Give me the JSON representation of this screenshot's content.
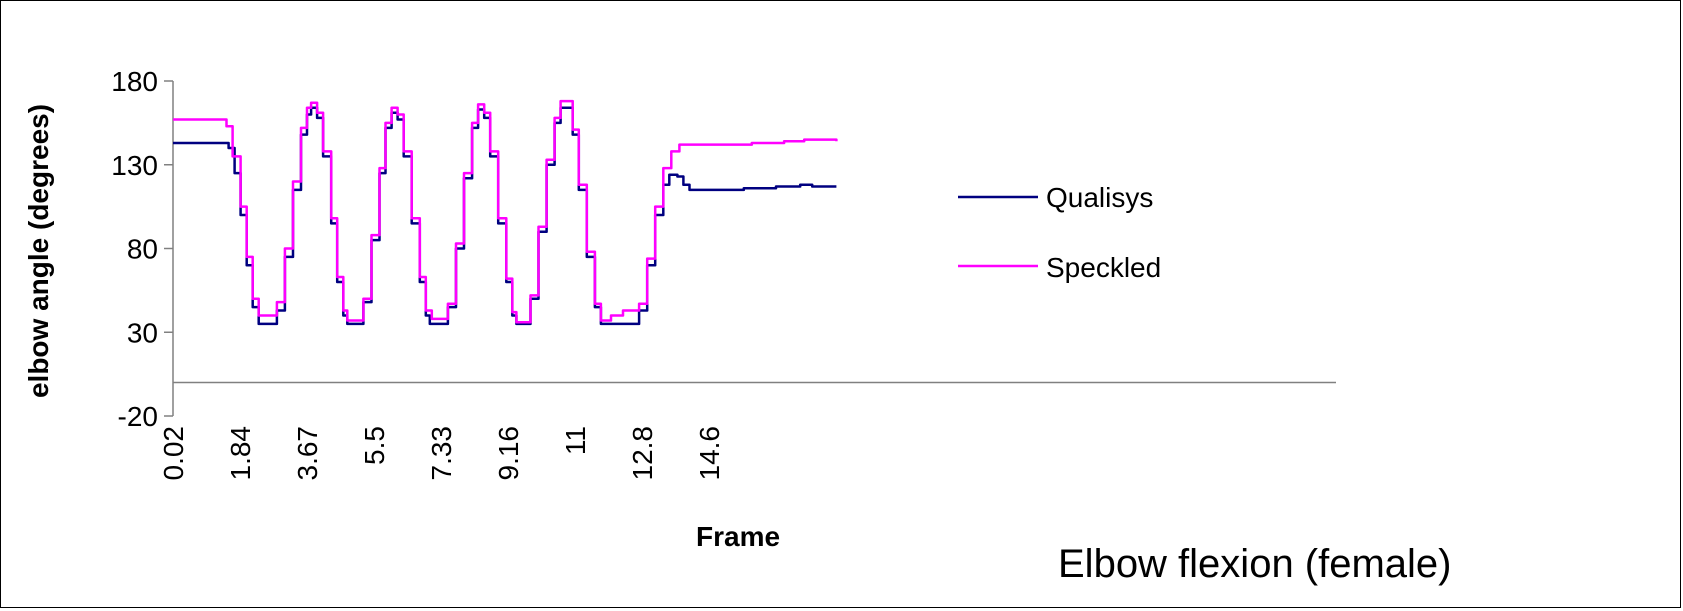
{
  "caption": "Elbow flexion (female)",
  "chart_data": {
    "type": "line",
    "xlabel": "Frame",
    "ylabel": "elbow angle (degrees)",
    "x_tick_labels": [
      "0.02",
      "1.84",
      "3.67",
      "5.5",
      "7.33",
      "9.16",
      "11",
      "12.8",
      "14.6"
    ],
    "x_range": [
      0.02,
      16.5
    ],
    "ylim": [
      -20,
      180
    ],
    "y_ticks": [
      -20,
      30,
      80,
      130,
      180
    ],
    "grid": false,
    "legend_position": "right",
    "series": [
      {
        "name": "Qualisys",
        "color": "#000080",
        "points": [
          [
            0.02,
            143
          ],
          [
            1.2,
            143
          ],
          [
            1.4,
            140
          ],
          [
            1.55,
            125
          ],
          [
            1.7,
            100
          ],
          [
            1.85,
            70
          ],
          [
            2.0,
            45
          ],
          [
            2.15,
            35
          ],
          [
            2.45,
            35
          ],
          [
            2.6,
            43
          ],
          [
            2.8,
            75
          ],
          [
            3.0,
            115
          ],
          [
            3.2,
            148
          ],
          [
            3.35,
            160
          ],
          [
            3.45,
            164
          ],
          [
            3.6,
            158
          ],
          [
            3.75,
            135
          ],
          [
            3.95,
            95
          ],
          [
            4.1,
            60
          ],
          [
            4.25,
            40
          ],
          [
            4.35,
            35
          ],
          [
            4.6,
            35
          ],
          [
            4.75,
            48
          ],
          [
            4.95,
            85
          ],
          [
            5.15,
            125
          ],
          [
            5.3,
            152
          ],
          [
            5.45,
            161
          ],
          [
            5.6,
            157
          ],
          [
            5.75,
            135
          ],
          [
            5.95,
            95
          ],
          [
            6.15,
            60
          ],
          [
            6.3,
            40
          ],
          [
            6.4,
            35
          ],
          [
            6.7,
            35
          ],
          [
            6.85,
            45
          ],
          [
            7.05,
            80
          ],
          [
            7.25,
            122
          ],
          [
            7.45,
            152
          ],
          [
            7.6,
            163
          ],
          [
            7.75,
            158
          ],
          [
            7.9,
            135
          ],
          [
            8.1,
            95
          ],
          [
            8.3,
            60
          ],
          [
            8.45,
            40
          ],
          [
            8.55,
            35
          ],
          [
            8.75,
            35
          ],
          [
            8.9,
            50
          ],
          [
            9.1,
            90
          ],
          [
            9.3,
            130
          ],
          [
            9.5,
            155
          ],
          [
            9.65,
            164
          ],
          [
            9.8,
            164
          ],
          [
            9.95,
            148
          ],
          [
            10.1,
            115
          ],
          [
            10.3,
            75
          ],
          [
            10.5,
            45
          ],
          [
            10.65,
            35
          ],
          [
            11.4,
            35
          ],
          [
            11.6,
            43
          ],
          [
            11.8,
            70
          ],
          [
            12.0,
            100
          ],
          [
            12.2,
            118
          ],
          [
            12.35,
            124
          ],
          [
            12.55,
            123
          ],
          [
            12.7,
            118
          ],
          [
            12.85,
            115
          ],
          [
            13.5,
            115
          ],
          [
            14.2,
            116
          ],
          [
            15.0,
            117
          ],
          [
            15.6,
            118
          ],
          [
            15.9,
            117
          ],
          [
            16.5,
            117
          ]
        ]
      },
      {
        "name": "Speckled",
        "color": "#ff00ff",
        "points": [
          [
            0.02,
            157
          ],
          [
            1.2,
            157
          ],
          [
            1.35,
            153
          ],
          [
            1.5,
            135
          ],
          [
            1.7,
            105
          ],
          [
            1.85,
            75
          ],
          [
            2.0,
            50
          ],
          [
            2.15,
            40
          ],
          [
            2.45,
            40
          ],
          [
            2.6,
            48
          ],
          [
            2.8,
            80
          ],
          [
            3.0,
            120
          ],
          [
            3.2,
            152
          ],
          [
            3.35,
            164
          ],
          [
            3.45,
            167
          ],
          [
            3.6,
            161
          ],
          [
            3.75,
            138
          ],
          [
            3.95,
            98
          ],
          [
            4.1,
            63
          ],
          [
            4.25,
            43
          ],
          [
            4.35,
            37
          ],
          [
            4.6,
            37
          ],
          [
            4.75,
            50
          ],
          [
            4.95,
            88
          ],
          [
            5.15,
            128
          ],
          [
            5.3,
            155
          ],
          [
            5.45,
            164
          ],
          [
            5.6,
            160
          ],
          [
            5.75,
            138
          ],
          [
            5.95,
            98
          ],
          [
            6.15,
            63
          ],
          [
            6.3,
            43
          ],
          [
            6.45,
            38
          ],
          [
            6.7,
            38
          ],
          [
            6.85,
            47
          ],
          [
            7.05,
            83
          ],
          [
            7.25,
            125
          ],
          [
            7.45,
            155
          ],
          [
            7.6,
            166
          ],
          [
            7.75,
            161
          ],
          [
            7.9,
            138
          ],
          [
            8.1,
            98
          ],
          [
            8.3,
            62
          ],
          [
            8.45,
            42
          ],
          [
            8.55,
            36
          ],
          [
            8.75,
            36
          ],
          [
            8.9,
            52
          ],
          [
            9.1,
            93
          ],
          [
            9.3,
            133
          ],
          [
            9.5,
            158
          ],
          [
            9.65,
            168
          ],
          [
            9.8,
            168
          ],
          [
            9.95,
            151
          ],
          [
            10.1,
            118
          ],
          [
            10.3,
            78
          ],
          [
            10.5,
            47
          ],
          [
            10.65,
            37
          ],
          [
            10.9,
            40
          ],
          [
            11.2,
            43
          ],
          [
            11.6,
            47
          ],
          [
            11.8,
            74
          ],
          [
            12.0,
            105
          ],
          [
            12.2,
            128
          ],
          [
            12.4,
            138
          ],
          [
            12.6,
            142
          ],
          [
            13.5,
            142
          ],
          [
            14.4,
            143
          ],
          [
            15.2,
            144
          ],
          [
            15.7,
            145
          ],
          [
            16.5,
            144
          ]
        ]
      }
    ]
  }
}
